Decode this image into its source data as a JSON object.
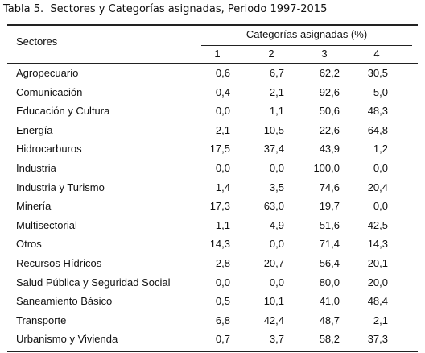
{
  "caption": "Tabla 5.  Sectores y Categorías asignadas, Periodo 1997-2015",
  "table": {
    "row_header": "Sectores",
    "group_header": "Categorías asignadas (%)",
    "columns": [
      "1",
      "2",
      "3",
      "4"
    ],
    "rows": [
      [
        "Agropecuario",
        "0,6",
        "6,7",
        "62,2",
        "30,5"
      ],
      [
        "Comunicación",
        "0,4",
        "2,1",
        "92,6",
        "5,0"
      ],
      [
        "Educación y Cultura",
        "0,0",
        "1,1",
        "50,6",
        "48,3"
      ],
      [
        "Energía",
        "2,1",
        "10,5",
        "22,6",
        "64,8"
      ],
      [
        "Hidrocarburos",
        "17,5",
        "37,4",
        "43,9",
        "1,2"
      ],
      [
        "Industria",
        "0,0",
        "0,0",
        "100,0",
        "0,0"
      ],
      [
        "Industria y Turismo",
        "1,4",
        "3,5",
        "74,6",
        "20,4"
      ],
      [
        "Minería",
        "17,3",
        "63,0",
        "19,7",
        "0,0"
      ],
      [
        "Multisectorial",
        "1,1",
        "4,9",
        "51,6",
        "42,5"
      ],
      [
        "Otros",
        "14,3",
        "0,0",
        "71,4",
        "14,3"
      ],
      [
        "Recursos Hídricos",
        "2,8",
        "20,7",
        "56,4",
        "20,1"
      ],
      [
        "Salud Pública y Seguridad Social",
        "0,0",
        "0,0",
        "80,0",
        "20,0"
      ],
      [
        "Saneamiento Básico",
        "0,5",
        "10,1",
        "41,0",
        "48,4"
      ],
      [
        "Transporte",
        "6,8",
        "42,4",
        "48,7",
        "2,1"
      ],
      [
        "Urbanismo y Vivienda",
        "0,7",
        "3,7",
        "58,2",
        "37,3"
      ]
    ]
  }
}
